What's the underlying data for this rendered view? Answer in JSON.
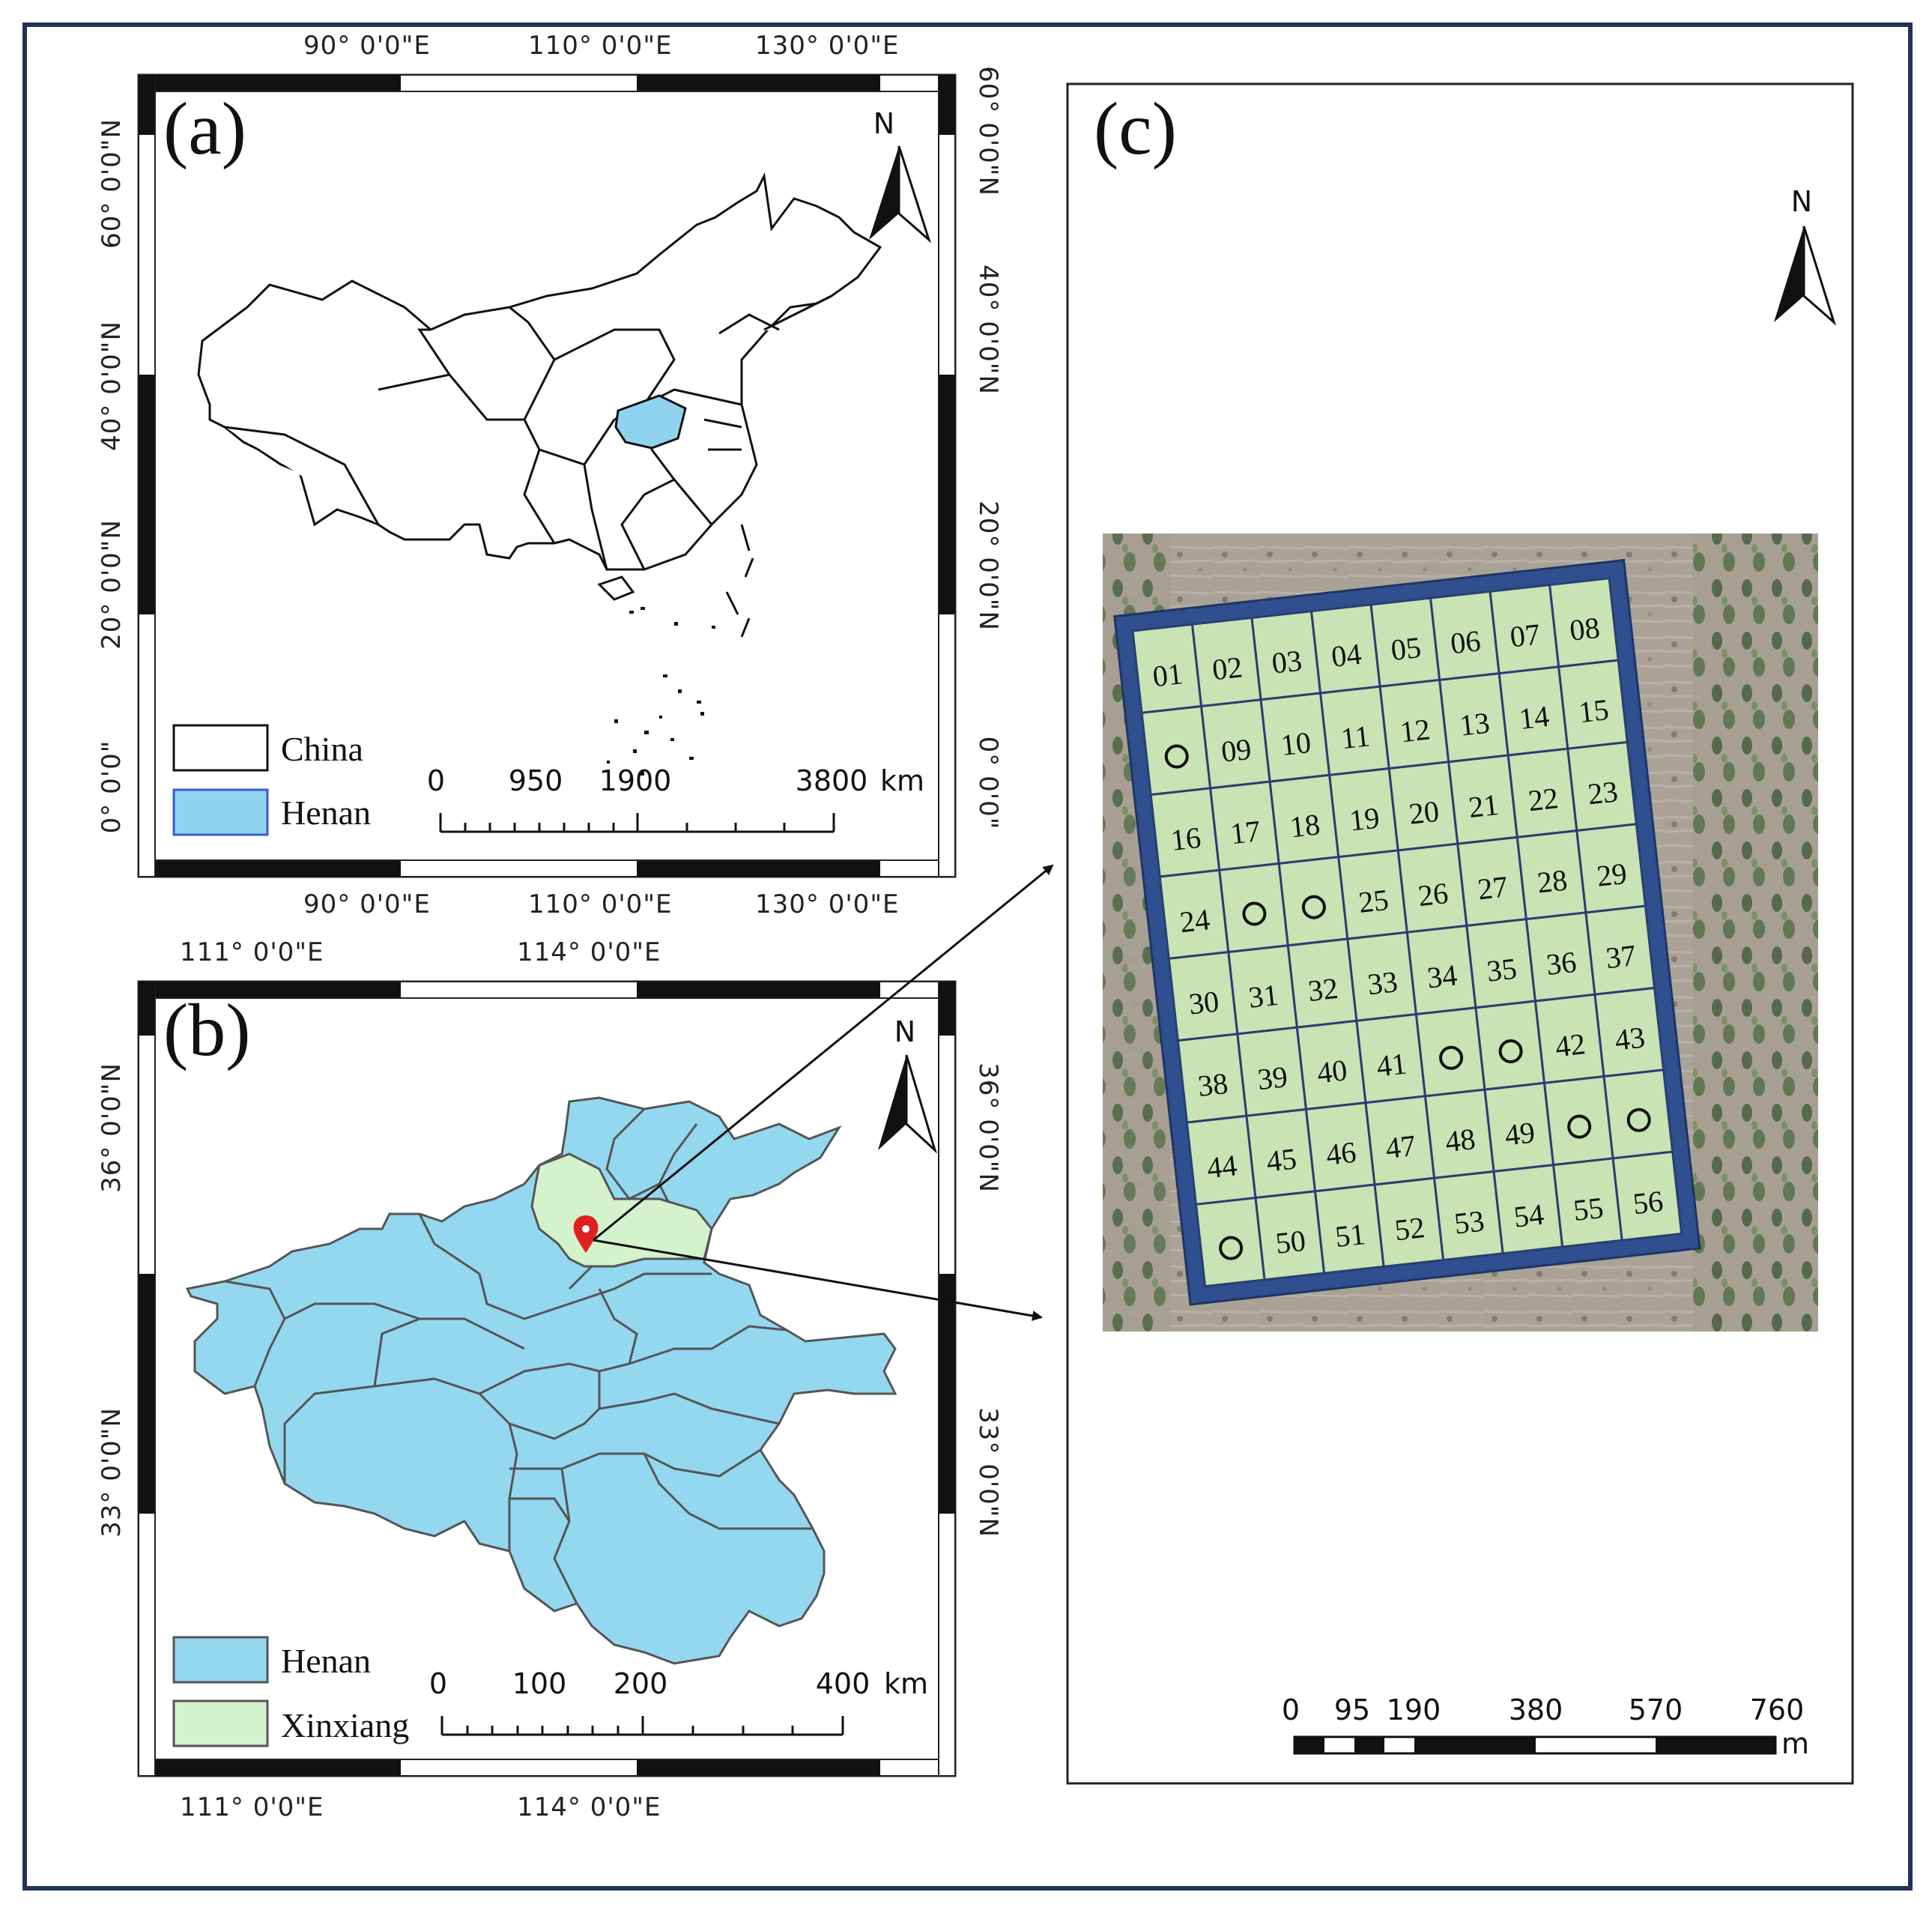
{
  "panel_a": {
    "label": "(a)",
    "top_lon": [
      "90° 0'0\"E",
      "110° 0'0\"E",
      "130° 0'0\"E"
    ],
    "bottom_lon": [
      "90° 0'0\"E",
      "110° 0'0\"E",
      "130° 0'0\"E"
    ],
    "left_lat": [
      "60° 0'0\"N",
      "40° 0'0\"N",
      "20° 0'0\"N",
      "0° 0'0\""
    ],
    "right_lat": [
      "60° 0'0\"N",
      "40° 0'0\"N",
      "20° 0'0\"N",
      "0° 0'0\""
    ],
    "north": "N",
    "legend": [
      {
        "label": "China",
        "color": "#ffffff"
      },
      {
        "label": "Henan",
        "color": "#8fd3ef"
      }
    ],
    "scale_ticks": [
      "0",
      "950",
      "1900",
      "3800"
    ],
    "scale_unit": "km",
    "highlight_color": "#8fd3ef"
  },
  "panel_b": {
    "label": "(b)",
    "top_lon": [
      "111° 0'0\"E",
      "114° 0'0\"E"
    ],
    "bottom_lon": [
      "111° 0'0\"E",
      "114° 0'0\"E"
    ],
    "left_lat": [
      "36° 0'0\"N",
      "33° 0'0\"N"
    ],
    "right_lat": [
      "36° 0'0\"N",
      "33° 0'0\"N"
    ],
    "north": "N",
    "legend": [
      {
        "label": "Henan",
        "color": "#94d8f0"
      },
      {
        "label": "Xinxiang",
        "color": "#d4f2cc"
      }
    ],
    "scale_ticks": [
      "0",
      "100",
      "200",
      "400"
    ],
    "scale_unit": "km",
    "marker_color": "#e02020",
    "henan_color": "#94d8f0",
    "xinxiang_color": "#d4f2cc"
  },
  "panel_c": {
    "label": "(c)",
    "north": "N",
    "scale_ticks": [
      "0",
      "95",
      "190",
      "380",
      "570",
      "760"
    ],
    "scale_unit": "m",
    "grid_border_color": "#2f4f8f",
    "plot_fill": "#c8e4b4",
    "rows": [
      [
        "01",
        "02",
        "03",
        "04",
        "05",
        "06",
        "07",
        "08"
      ],
      [
        "O",
        "09",
        "10",
        "11",
        "12",
        "13",
        "14",
        "15"
      ],
      [
        "16",
        "17",
        "18",
        "19",
        "20",
        "21",
        "22",
        "23"
      ],
      [
        "24",
        "O",
        "O",
        "25",
        "26",
        "27",
        "28",
        "29"
      ],
      [
        "30",
        "31",
        "32",
        "33",
        "34",
        "35",
        "36",
        "37"
      ],
      [
        "38",
        "39",
        "40",
        "41",
        "O",
        "O",
        "42",
        "43"
      ],
      [
        "44",
        "45",
        "46",
        "47",
        "48",
        "49",
        "O",
        "O"
      ],
      [
        "O",
        "50",
        "51",
        "52",
        "53",
        "54",
        "55",
        "56"
      ]
    ]
  }
}
